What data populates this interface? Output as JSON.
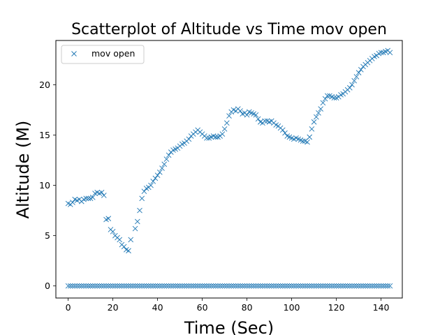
{
  "chart_data": {
    "type": "scatter",
    "title": "Scatterplot of Altitude vs Time mov open",
    "xlabel": "Time (Sec)",
    "ylabel": "Altitude (M)",
    "xlim": [
      -5.5,
      149.5
    ],
    "ylim": [
      -1.2,
      24.4
    ],
    "xticks": [
      0,
      20,
      40,
      60,
      80,
      100,
      120,
      140
    ],
    "yticks": [
      0,
      5,
      10,
      15,
      20
    ],
    "grid": false,
    "marker": "x",
    "legend_position": "top-left",
    "color": "#1f77b4",
    "series": [
      {
        "name": "mov open",
        "points": [
          [
            0,
            8.2
          ],
          [
            1,
            8.1
          ],
          [
            2,
            8.3
          ],
          [
            3,
            8.6
          ],
          [
            4,
            8.5
          ],
          [
            5,
            8.6
          ],
          [
            6,
            8.4
          ],
          [
            7,
            8.6
          ],
          [
            8,
            8.7
          ],
          [
            9,
            8.7
          ],
          [
            10,
            8.7
          ],
          [
            11,
            8.8
          ],
          [
            12,
            9.2
          ],
          [
            13,
            9.3
          ],
          [
            14,
            9.2
          ],
          [
            15,
            9.3
          ],
          [
            16,
            9.0
          ],
          [
            17,
            6.6
          ],
          [
            18,
            6.7
          ],
          [
            19,
            5.6
          ],
          [
            20,
            5.4
          ],
          [
            21,
            5.0
          ],
          [
            22,
            4.8
          ],
          [
            23,
            4.6
          ],
          [
            24,
            4.1
          ],
          [
            25,
            3.9
          ],
          [
            26,
            3.6
          ],
          [
            27,
            3.5
          ],
          [
            28,
            4.6
          ],
          [
            30,
            5.7
          ],
          [
            31,
            6.4
          ],
          [
            32,
            7.5
          ],
          [
            33,
            8.7
          ],
          [
            34,
            9.4
          ],
          [
            35,
            9.7
          ],
          [
            36,
            9.8
          ],
          [
            37,
            10.0
          ],
          [
            38,
            10.4
          ],
          [
            39,
            10.7
          ],
          [
            40,
            11.0
          ],
          [
            41,
            11.3
          ],
          [
            42,
            11.7
          ],
          [
            43,
            12.1
          ],
          [
            44,
            12.6
          ],
          [
            45,
            13.0
          ],
          [
            46,
            13.3
          ],
          [
            47,
            13.5
          ],
          [
            48,
            13.6
          ],
          [
            49,
            13.7
          ],
          [
            50,
            13.9
          ],
          [
            51,
            14.1
          ],
          [
            52,
            14.2
          ],
          [
            53,
            14.4
          ],
          [
            54,
            14.6
          ],
          [
            55,
            14.9
          ],
          [
            56,
            15.1
          ],
          [
            57,
            15.3
          ],
          [
            58,
            15.5
          ],
          [
            59,
            15.3
          ],
          [
            60,
            15.1
          ],
          [
            61,
            14.9
          ],
          [
            62,
            14.7
          ],
          [
            63,
            14.7
          ],
          [
            64,
            14.8
          ],
          [
            65,
            14.9
          ],
          [
            66,
            14.8
          ],
          [
            67,
            14.8
          ],
          [
            68,
            14.9
          ],
          [
            69,
            15.1
          ],
          [
            70,
            15.6
          ],
          [
            71,
            16.2
          ],
          [
            72,
            16.9
          ],
          [
            73,
            17.3
          ],
          [
            74,
            17.5
          ],
          [
            75,
            17.4
          ],
          [
            76,
            17.6
          ],
          [
            77,
            17.4
          ],
          [
            78,
            17.1
          ],
          [
            79,
            17.2
          ],
          [
            80,
            17.0
          ],
          [
            81,
            17.3
          ],
          [
            82,
            17.2
          ],
          [
            83,
            17.1
          ],
          [
            84,
            17.0
          ],
          [
            85,
            16.6
          ],
          [
            86,
            16.3
          ],
          [
            87,
            16.2
          ],
          [
            88,
            16.4
          ],
          [
            89,
            16.4
          ],
          [
            90,
            16.3
          ],
          [
            91,
            16.4
          ],
          [
            92,
            16.2
          ],
          [
            93,
            16.0
          ],
          [
            94,
            15.9
          ],
          [
            95,
            15.7
          ],
          [
            96,
            15.5
          ],
          [
            97,
            15.2
          ],
          [
            98,
            14.9
          ],
          [
            99,
            14.8
          ],
          [
            100,
            14.7
          ],
          [
            101,
            14.6
          ],
          [
            102,
            14.7
          ],
          [
            103,
            14.6
          ],
          [
            104,
            14.5
          ],
          [
            105,
            14.4
          ],
          [
            106,
            14.4
          ],
          [
            107,
            14.3
          ],
          [
            108,
            14.8
          ],
          [
            109,
            15.6
          ],
          [
            110,
            16.3
          ],
          [
            111,
            16.8
          ],
          [
            112,
            17.2
          ],
          [
            113,
            17.6
          ],
          [
            114,
            18.2
          ],
          [
            115,
            18.6
          ],
          [
            116,
            18.9
          ],
          [
            117,
            18.9
          ],
          [
            118,
            18.8
          ],
          [
            119,
            18.7
          ],
          [
            120,
            18.7
          ],
          [
            121,
            18.8
          ],
          [
            122,
            19.0
          ],
          [
            123,
            19.1
          ],
          [
            124,
            19.3
          ],
          [
            125,
            19.5
          ],
          [
            126,
            19.7
          ],
          [
            127,
            20.0
          ],
          [
            128,
            20.4
          ],
          [
            129,
            20.8
          ],
          [
            130,
            21.2
          ],
          [
            131,
            21.5
          ],
          [
            132,
            21.8
          ],
          [
            133,
            22.0
          ],
          [
            134,
            22.2
          ],
          [
            135,
            22.4
          ],
          [
            136,
            22.6
          ],
          [
            137,
            22.8
          ],
          [
            138,
            22.9
          ],
          [
            139,
            23.1
          ],
          [
            140,
            23.2
          ],
          [
            141,
            23.2
          ],
          [
            142,
            23.3
          ],
          [
            143,
            23.4
          ],
          [
            144,
            23.2
          ]
        ],
        "baseline": {
          "y": 0,
          "x_from": 0,
          "x_to": 144
        }
      }
    ]
  }
}
